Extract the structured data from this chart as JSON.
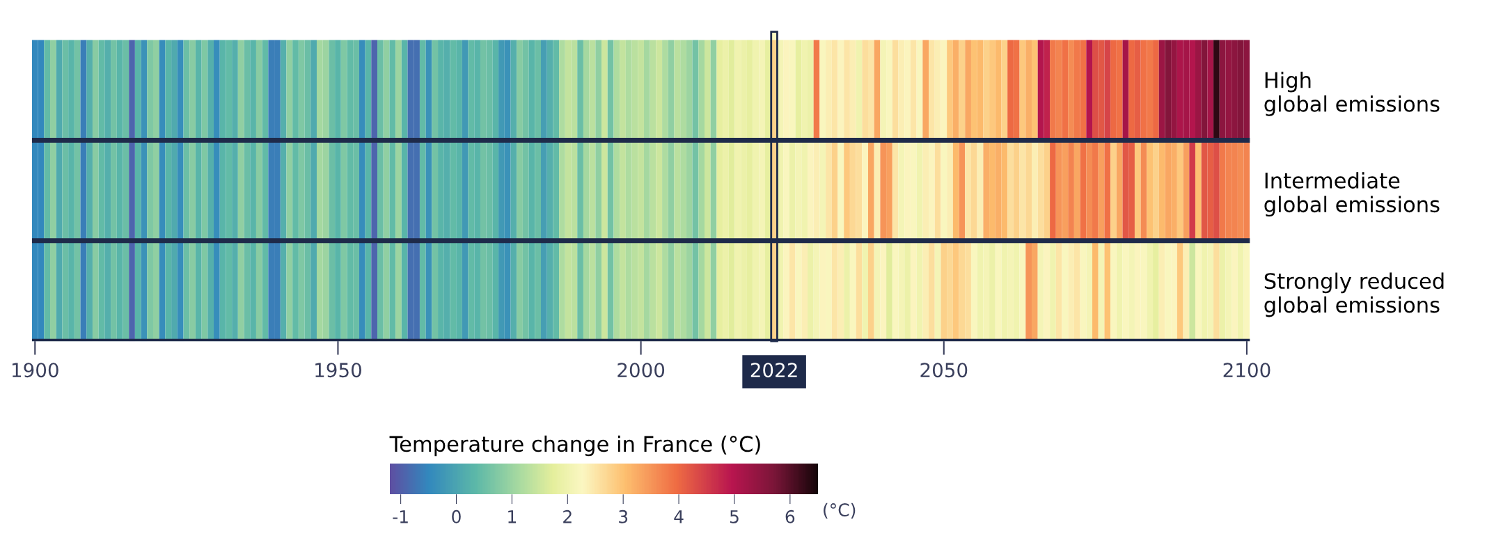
{
  "chart_data": {
    "type": "heatmap",
    "categories": [
      "1900",
      null,
      null,
      null,
      null,
      null,
      null,
      null,
      null,
      null,
      null,
      null,
      null,
      null,
      null,
      null,
      null,
      null,
      null,
      null,
      null,
      null,
      null,
      null,
      null,
      null,
      null,
      null,
      null,
      null,
      null,
      null,
      null,
      null,
      null,
      null,
      null,
      null,
      null,
      null,
      null,
      null,
      null,
      null,
      null,
      null,
      null,
      null,
      null,
      null,
      "1950",
      null,
      null,
      null,
      null,
      null,
      null,
      null,
      null,
      null,
      null,
      null,
      null,
      null,
      null,
      null,
      null,
      null,
      null,
      null,
      null,
      null,
      null,
      null,
      null,
      null,
      null,
      null,
      null,
      null,
      null,
      null,
      null,
      null,
      null,
      null,
      null,
      null,
      null,
      null,
      null,
      null,
      null,
      null,
      null,
      null,
      null,
      null,
      null,
      null,
      "2000",
      null,
      null,
      null,
      null,
      null,
      null,
      null,
      null,
      null,
      null,
      null,
      null,
      null,
      null,
      null,
      null,
      null,
      null,
      null,
      null,
      null,
      "2022",
      null,
      null,
      null,
      null,
      null,
      null,
      null,
      null,
      null,
      null,
      null,
      null,
      null,
      null,
      null,
      null,
      null,
      null,
      null,
      null,
      null,
      null,
      null,
      null,
      null,
      null,
      null,
      "2050",
      null,
      null,
      null,
      null,
      null,
      null,
      null,
      null,
      null,
      null,
      null,
      null,
      null,
      null,
      null,
      null,
      null,
      null,
      null,
      null,
      null,
      null,
      null,
      null,
      null,
      null,
      null,
      null,
      null,
      null,
      null,
      null,
      null,
      null,
      null,
      null,
      null,
      null,
      null,
      null,
      null,
      null,
      null,
      null,
      null,
      null,
      null,
      null,
      null,
      "2100"
    ],
    "y_categories": [
      null,
      null,
      null
    ],
    "y2_categories": [
      "High\nglobal emissions",
      "Intermediate\nglobal emissions",
      "Strongly reduced\nglobal emissions"
    ],
    "cells": [
      [
        -0.5,
        -0.5,
        0.4,
        0.9,
        0.1,
        0.5,
        0.3,
        0.6,
        -0.6,
        0.2,
        0.8,
        0.4,
        0.2,
        0.6,
        0.3,
        0.5,
        -0.9,
        0.3,
        -0.3,
        0.7,
        0.9,
        -0.4,
        0.3,
        0.1,
        -0.4,
        0.5,
        0.8,
        0.3,
        0.7,
        0.2,
        -0.4,
        0.3,
        0.4,
        0.2,
        0.9,
        0.5,
        0.3,
        0.8,
        0.4,
        -0.6,
        -0.6,
        0.2,
        0.9,
        0.4,
        0.7,
        0.5,
        0.1,
        1.1,
        1.0,
        0.5,
        0.3,
        0.7,
        0.4,
        0.5,
        -0.4,
        0.3,
        -0.9,
        0.5,
        0.9,
        0.4,
        1.0,
        0.3,
        -0.8,
        -0.8,
        0.4,
        -0.3,
        0.6,
        0.3,
        0.2,
        0.4,
        0.3,
        -0.2,
        0.4,
        0.3,
        0.6,
        0.5,
        0.3,
        -0.2,
        -0.3,
        0.2,
        0.8,
        0.6,
        0.3,
        0.5,
        -0.1,
        0.2,
        0.4,
        1.2,
        1.4,
        1.3,
        0.5,
        1.1,
        1.3,
        0.9,
        1.5,
        0.6,
        1.2,
        1.4,
        1.2,
        1.3,
        1.4,
        1.1,
        1.3,
        1.5,
        1.2,
        0.9,
        1.3,
        1.2,
        1.0,
        0.6,
        1.1,
        1.5,
        0.9,
        1.8,
        1.9,
        1.7,
        2.0,
        1.9,
        1.8,
        2.0,
        2.1,
        1.8,
        2.8,
        2.1,
        2.3,
        2.2,
        1.8,
        2.0,
        1.9,
        3.8,
        2.2,
        2.4,
        2.5,
        2.3,
        2.5,
        2.4,
        2.0,
        2.6,
        2.5,
        3.3,
        2.1,
        2.2,
        2.6,
        2.4,
        2.3,
        2.5,
        2.2,
        3.3,
        2.5,
        2.4,
        2.3,
        2.9,
        3.2,
        2.8,
        3.3,
        3.0,
        3.1,
        2.8,
        2.9,
        3.1,
        2.8,
        4.0,
        3.9,
        2.9,
        3.2,
        3.0,
        5.0,
        4.8,
        3.8,
        3.7,
        3.9,
        3.6,
        3.8,
        3.9,
        5.0,
        4.3,
        4.2,
        4.4,
        4.0,
        3.9,
        5.2,
        4.0,
        4.1,
        3.9,
        3.8,
        4.0,
        5.3,
        5.6,
        5.4,
        5.1,
        5.2,
        5.0,
        5.3,
        5.6,
        5.2,
        6.3,
        5.5,
        5.4,
        5.5,
        5.6,
        5.5
      ],
      [
        -0.5,
        -0.5,
        0.4,
        0.9,
        0.1,
        0.5,
        0.3,
        0.6,
        -0.6,
        0.2,
        0.8,
        0.4,
        0.2,
        0.6,
        0.3,
        0.5,
        -0.9,
        0.3,
        -0.3,
        0.7,
        0.9,
        -0.4,
        0.3,
        0.1,
        -0.4,
        0.5,
        0.8,
        0.3,
        0.7,
        0.2,
        -0.4,
        0.3,
        0.4,
        0.2,
        0.9,
        0.5,
        0.3,
        0.8,
        0.4,
        -0.6,
        -0.6,
        0.2,
        0.9,
        0.4,
        0.7,
        0.5,
        0.1,
        1.1,
        1.0,
        0.5,
        0.3,
        0.7,
        0.4,
        0.5,
        -0.4,
        0.3,
        -0.9,
        0.5,
        0.9,
        0.4,
        1.0,
        0.3,
        -0.8,
        -0.8,
        0.4,
        -0.3,
        0.6,
        0.3,
        0.2,
        0.4,
        0.3,
        -0.2,
        0.4,
        0.3,
        0.6,
        0.5,
        0.3,
        -0.2,
        -0.3,
        0.2,
        0.8,
        0.6,
        0.3,
        0.5,
        -0.1,
        0.2,
        0.4,
        1.2,
        1.4,
        1.3,
        0.5,
        1.1,
        1.3,
        0.9,
        1.5,
        0.6,
        1.2,
        1.4,
        1.2,
        1.3,
        1.4,
        1.1,
        1.3,
        1.5,
        1.2,
        0.9,
        1.3,
        1.2,
        1.0,
        0.6,
        1.1,
        1.5,
        0.9,
        1.8,
        1.9,
        1.7,
        2.0,
        1.9,
        1.8,
        2.0,
        2.1,
        1.8,
        2.8,
        2.0,
        2.2,
        1.9,
        2.1,
        2.0,
        2.3,
        2.4,
        2.1,
        2.5,
        2.8,
        2.2,
        2.9,
        2.7,
        2.6,
        2.3,
        3.3,
        2.4,
        3.5,
        3.4,
        2.5,
        2.1,
        2.3,
        2.2,
        2.0,
        2.4,
        2.3,
        2.6,
        2.2,
        2.4,
        3.1,
        3.5,
        2.5,
        2.7,
        2.4,
        3.2,
        3.1,
        3.2,
        3.1,
        2.6,
        2.8,
        2.5,
        2.7,
        2.4,
        2.6,
        2.8,
        4.0,
        3.5,
        3.4,
        3.7,
        3.3,
        3.9,
        3.6,
        3.8,
        3.4,
        3.9,
        2.8,
        3.3,
        4.2,
        4.1,
        2.9,
        3.6,
        3.0,
        2.8,
        3.1,
        3.3,
        3.2,
        2.9,
        3.4,
        4.5,
        3.0,
        4.2,
        4.1,
        4.3,
        3.8,
        3.7,
        3.7,
        3.6,
        3.7
      ],
      [
        -0.5,
        -0.5,
        0.4,
        0.9,
        0.1,
        0.5,
        0.3,
        0.6,
        -0.6,
        0.2,
        0.8,
        0.4,
        0.2,
        0.6,
        0.3,
        0.5,
        -0.9,
        0.3,
        -0.3,
        0.7,
        0.9,
        -0.4,
        0.3,
        0.1,
        -0.4,
        0.5,
        0.8,
        0.3,
        0.7,
        0.2,
        -0.4,
        0.3,
        0.4,
        0.2,
        0.9,
        0.5,
        0.3,
        0.8,
        0.4,
        -0.6,
        -0.6,
        0.2,
        0.9,
        0.4,
        0.7,
        0.5,
        0.1,
        1.1,
        1.0,
        0.5,
        0.3,
        0.7,
        0.4,
        0.5,
        -0.4,
        0.3,
        -0.9,
        0.5,
        0.9,
        0.4,
        1.0,
        0.3,
        -0.8,
        -0.8,
        0.4,
        -0.3,
        0.6,
        0.3,
        0.2,
        0.4,
        0.3,
        -0.2,
        0.4,
        0.3,
        0.6,
        0.5,
        0.3,
        -0.2,
        -0.3,
        0.2,
        0.8,
        0.6,
        0.3,
        0.5,
        -0.1,
        0.2,
        0.4,
        1.2,
        1.4,
        1.3,
        0.5,
        1.1,
        1.3,
        0.9,
        1.5,
        0.6,
        1.2,
        1.4,
        1.2,
        1.3,
        1.4,
        1.1,
        1.3,
        1.5,
        1.2,
        0.9,
        1.3,
        1.2,
        1.0,
        0.6,
        1.1,
        1.5,
        0.9,
        1.8,
        1.9,
        1.7,
        2.0,
        1.9,
        1.8,
        2.0,
        2.1,
        1.8,
        2.8,
        2.0,
        2.3,
        2.5,
        2.2,
        2.4,
        1.9,
        2.1,
        2.3,
        2.2,
        2.5,
        2.4,
        1.9,
        2.2,
        2.6,
        2.0,
        2.8,
        2.1,
        2.3,
        1.7,
        2.2,
        2.1,
        1.9,
        2.3,
        2.0,
        2.4,
        2.6,
        2.1,
        2.8,
        2.7,
        2.9,
        2.7,
        2.6,
        2.2,
        2.0,
        2.1,
        1.9,
        2.2,
        2.0,
        2.1,
        2.0,
        2.2,
        3.5,
        3.3,
        2.1,
        2.3,
        2.0,
        2.5,
        2.2,
        2.4,
        2.5,
        2.2,
        2.1,
        3.1,
        2.1,
        3.0,
        2.2,
        2.0,
        2.2,
        2.1,
        2.3,
        2.2,
        2.0,
        1.8,
        2.4,
        2.2,
        2.3,
        2.9,
        2.4,
        1.5,
        2.2,
        2.0,
        2.1,
        2.6,
        1.9,
        2.1,
        2.3,
        2.0,
        2.2
      ]
    ],
    "clabel": "Temperature change in France (°C)",
    "clim": [
      -1.2,
      6.5
    ],
    "cticks": [
      -1,
      0,
      1,
      2,
      3,
      4,
      5,
      6
    ],
    "bands": [
      {
        "axis": "x",
        "from": "2022",
        "to": "2022"
      }
    ],
    "annotations": [
      "(°C)"
    ]
  }
}
